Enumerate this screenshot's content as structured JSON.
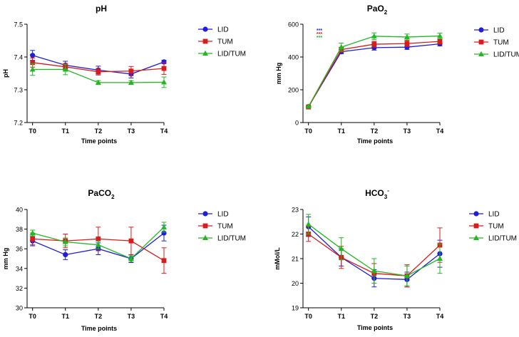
{
  "colors": {
    "LID": "#1f1fd6",
    "TUM": "#d81c1c",
    "LID/TUM": "#22b822"
  },
  "chart_data": [
    {
      "type": "line",
      "title": "pH",
      "xlabel": "Time points",
      "ylabel": "pH",
      "categories": [
        "T0",
        "T1",
        "T2",
        "T3",
        "T4"
      ],
      "ylim": [
        7.2,
        7.5
      ],
      "yticks": [
        "7.2",
        "7.3",
        "7.4",
        "7.5"
      ],
      "series": [
        {
          "name": "LID",
          "values": [
            7.405,
            7.375,
            7.36,
            7.348,
            7.385
          ],
          "errors": [
            0.015,
            0.012,
            0.012,
            0.012,
            0.005
          ],
          "marker": "circle"
        },
        {
          "name": "TUM",
          "values": [
            7.383,
            7.37,
            7.355,
            7.357,
            7.365
          ],
          "errors": [
            0.014,
            0.01,
            0.01,
            0.014,
            0.018
          ],
          "marker": "square"
        },
        {
          "name": "LID/TUM",
          "values": [
            7.362,
            7.362,
            7.322,
            7.322,
            7.323
          ],
          "errors": [
            0.018,
            0.016,
            0.006,
            0.006,
            0.016
          ],
          "marker": "triangle"
        }
      ],
      "annotations": []
    },
    {
      "type": "line",
      "title": "PaO",
      "title_sub": "2",
      "title_sup": "",
      "xlabel": "Time points",
      "ylabel": "mm Hg",
      "categories": [
        "T0",
        "T1",
        "T2",
        "T3",
        "T4"
      ],
      "ylim": [
        0,
        600
      ],
      "yticks": [
        "0",
        "200",
        "400",
        "600"
      ],
      "series": [
        {
          "name": "LID",
          "values": [
            97,
            432,
            457,
            460,
            480
          ],
          "errors": [
            3,
            12,
            15,
            14,
            12
          ],
          "marker": "circle"
        },
        {
          "name": "TUM",
          "values": [
            95,
            445,
            478,
            482,
            495
          ],
          "errors": [
            3,
            15,
            18,
            18,
            16
          ],
          "marker": "square"
        },
        {
          "name": "LID/TUM",
          "values": [
            98,
            460,
            527,
            522,
            528
          ],
          "errors": [
            3,
            25,
            20,
            18,
            18
          ],
          "marker": "triangle"
        }
      ],
      "annotations": [
        "***",
        "***",
        "***"
      ]
    },
    {
      "type": "line",
      "title": "PaCO",
      "title_sub": "2",
      "title_sup": "",
      "xlabel": "Time points",
      "ylabel": "mm Hg",
      "categories": [
        "T0",
        "T1",
        "T2",
        "T3",
        "T4"
      ],
      "ylim": [
        30,
        40
      ],
      "yticks": [
        "30",
        "32",
        "34",
        "36",
        "38",
        "40"
      ],
      "series": [
        {
          "name": "LID",
          "values": [
            36.8,
            35.4,
            36.0,
            35.0,
            37.6
          ],
          "errors": [
            0.5,
            0.5,
            0.6,
            0.4,
            0.8
          ],
          "marker": "circle"
        },
        {
          "name": "TUM",
          "values": [
            37.0,
            36.8,
            37.0,
            36.8,
            34.8
          ],
          "errors": [
            0.6,
            0.7,
            1.2,
            1.4,
            1.3
          ],
          "marker": "square"
        },
        {
          "name": "LID/TUM",
          "values": [
            37.6,
            36.7,
            36.4,
            35.0,
            38.2
          ],
          "errors": [
            0.3,
            0.4,
            0.4,
            0.3,
            0.5
          ],
          "marker": "triangle"
        }
      ],
      "annotations": []
    },
    {
      "type": "line",
      "title": "HCO",
      "title_sub": "3",
      "title_sup": "-",
      "xlabel": "Time points",
      "ylabel": "mMol/L",
      "categories": [
        "T0",
        "T1",
        "T2",
        "T3",
        "T4"
      ],
      "ylim": [
        19,
        23
      ],
      "yticks": [
        "19",
        "20",
        "21",
        "22",
        "23"
      ],
      "series": [
        {
          "name": "LID",
          "values": [
            22.3,
            21.05,
            20.2,
            20.15,
            21.2
          ],
          "errors": [
            0.4,
            0.35,
            0.35,
            0.3,
            0.55
          ],
          "marker": "circle"
        },
        {
          "name": "TUM",
          "values": [
            22.0,
            21.05,
            20.4,
            20.3,
            21.55
          ],
          "errors": [
            0.3,
            0.45,
            0.4,
            0.45,
            0.7
          ],
          "marker": "square"
        },
        {
          "name": "LID/TUM",
          "values": [
            22.4,
            21.4,
            20.5,
            20.3,
            21.0
          ],
          "errors": [
            0.4,
            0.45,
            0.5,
            0.4,
            0.6
          ],
          "marker": "triangle"
        }
      ],
      "annotations": []
    }
  ]
}
